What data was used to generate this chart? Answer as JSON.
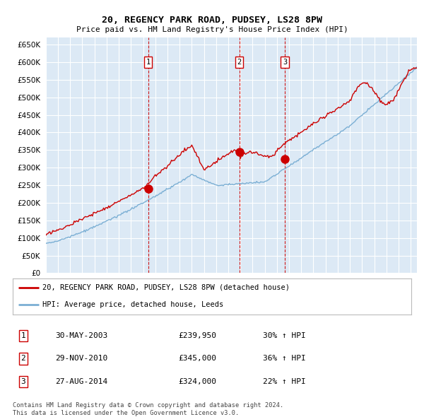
{
  "title": "20, REGENCY PARK ROAD, PUDSEY, LS28 8PW",
  "subtitle": "Price paid vs. HM Land Registry's House Price Index (HPI)",
  "xlim_start": 1995.0,
  "xlim_end": 2025.5,
  "ylim_bottom": 0,
  "ylim_top": 670000,
  "yticks": [
    0,
    50000,
    100000,
    150000,
    200000,
    250000,
    300000,
    350000,
    400000,
    450000,
    500000,
    550000,
    600000,
    650000
  ],
  "sale_dates": [
    2003.41,
    2010.91,
    2014.65
  ],
  "sale_prices": [
    239950,
    345000,
    324000
  ],
  "sale_labels": [
    "1",
    "2",
    "3"
  ],
  "legend_line1": "20, REGENCY PARK ROAD, PUDSEY, LS28 8PW (detached house)",
  "legend_line2": "HPI: Average price, detached house, Leeds",
  "table_rows": [
    {
      "num": "1",
      "date": "30-MAY-2003",
      "price": "£239,950",
      "hpi": "30% ↑ HPI"
    },
    {
      "num": "2",
      "date": "29-NOV-2010",
      "price": "£345,000",
      "hpi": "36% ↑ HPI"
    },
    {
      "num": "3",
      "date": "27-AUG-2014",
      "price": "£324,000",
      "hpi": "22% ↑ HPI"
    }
  ],
  "footnote1": "Contains HM Land Registry data © Crown copyright and database right 2024.",
  "footnote2": "This data is licensed under the Open Government Licence v3.0.",
  "hpi_color": "#7bafd4",
  "sale_color": "#cc0000",
  "bg_color": "#dce9f5",
  "grid_color": "#ffffff",
  "vline_color": "#cc0000"
}
